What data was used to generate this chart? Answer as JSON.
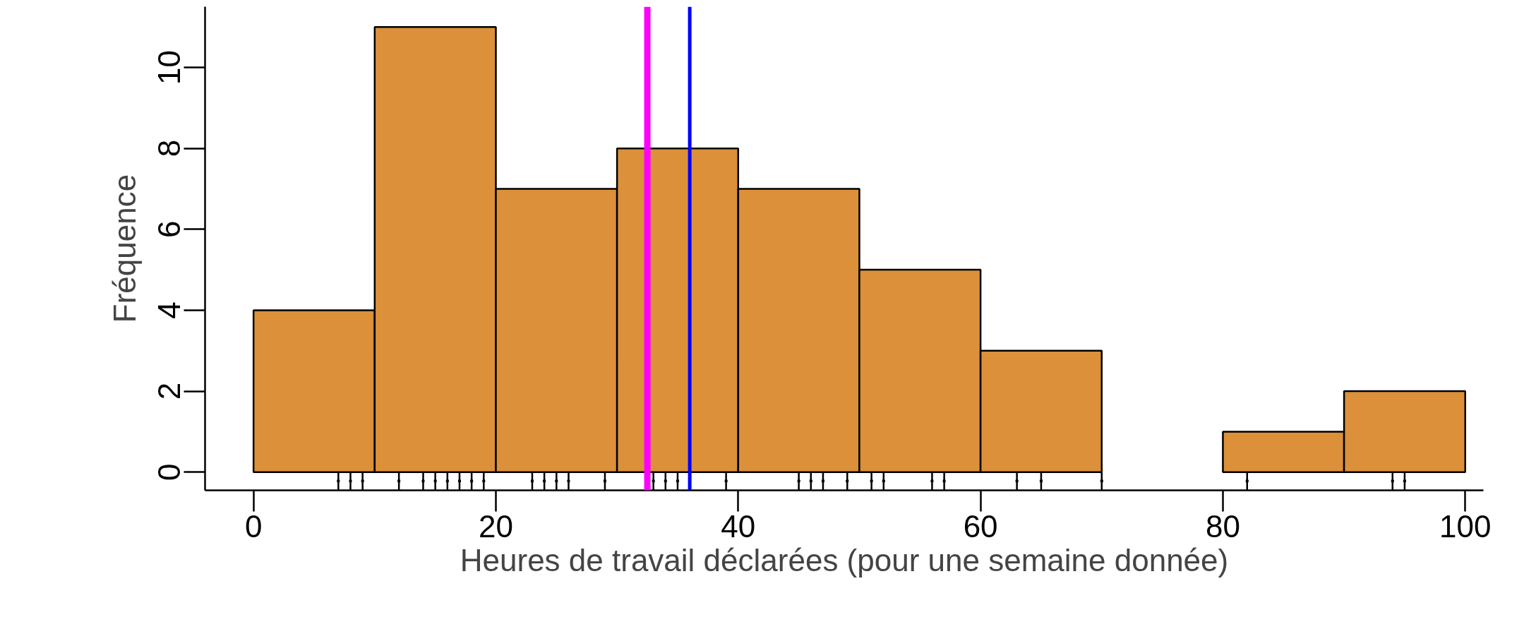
{
  "chart_data": {
    "type": "histogram",
    "xlabel": "Heures de travail déclarées (pour une semaine donnée)",
    "ylabel": "Fréquence",
    "xlim": [
      -4,
      101.5
    ],
    "ylim": [
      -0.45,
      11.5
    ],
    "xticks": [
      0,
      20,
      40,
      60,
      80,
      100
    ],
    "yticks": [
      0,
      2,
      4,
      6,
      8,
      10
    ],
    "grid": false,
    "color": "#db9039",
    "bins": [
      0,
      10,
      20,
      30,
      40,
      50,
      60,
      70,
      80,
      90,
      100
    ],
    "values": [
      4,
      11,
      7,
      8,
      7,
      5,
      3,
      0,
      1,
      2
    ],
    "series": [
      {
        "type": "scatter",
        "marker": "square",
        "color": "#000000",
        "x": [
          7,
          8,
          9,
          12,
          14,
          15,
          16,
          17,
          18,
          19,
          23,
          24,
          25,
          26,
          29,
          33,
          34,
          35,
          39,
          45,
          46,
          47,
          49,
          51,
          52,
          56,
          57,
          63,
          65,
          70,
          82,
          94,
          95
        ],
        "values": [
          -0.22,
          -0.22,
          -0.22,
          -0.22,
          -0.22,
          -0.22,
          -0.22,
          -0.22,
          -0.22,
          -0.22,
          -0.22,
          -0.22,
          -0.22,
          -0.22,
          -0.22,
          -0.22,
          -0.22,
          -0.22,
          -0.22,
          -0.22,
          -0.22,
          -0.22,
          -0.22,
          -0.22,
          -0.22,
          -0.22,
          -0.22,
          -0.22,
          -0.22,
          -0.22,
          -0.22,
          -0.22,
          -0.22
        ],
        "errors": [
          0.22,
          0.22,
          0.22,
          0.22,
          0.22,
          0.22,
          0.22,
          0.22,
          0.22,
          0.22,
          0.22,
          0.22,
          0.22,
          0.22,
          0.22,
          0.22,
          0.22,
          0.22,
          0.22,
          0.22,
          0.22,
          0.22,
          0.22,
          0.22,
          0.22,
          0.22,
          0.22,
          0.22,
          0.22,
          0.22,
          0.22,
          0.22,
          0.22
        ]
      }
    ],
    "ref_lines": [
      {
        "axis": "x",
        "value": 32.5,
        "color": "#ff00ff"
      },
      {
        "axis": "x",
        "value": 36,
        "color": "#0000ff"
      }
    ]
  }
}
